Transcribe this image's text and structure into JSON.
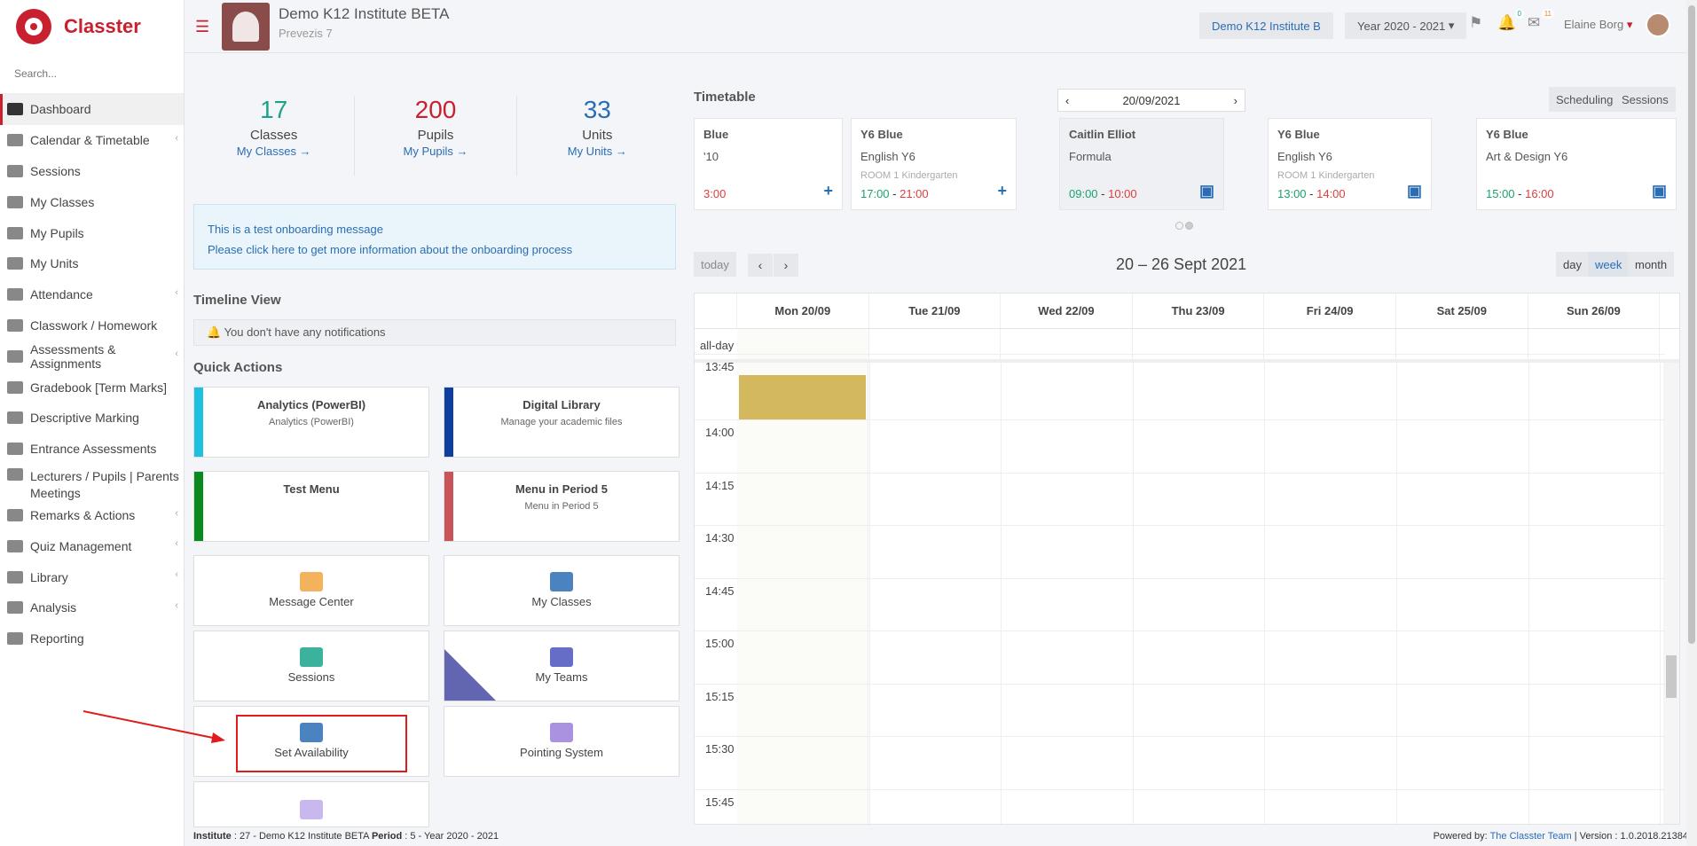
{
  "app": {
    "name": "Classter",
    "brand_color": "#c8202f"
  },
  "sidebar": {
    "search_placeholder": "Search...",
    "items": [
      {
        "label": "Dashboard",
        "icon": "laptop-icon"
      },
      {
        "label": "Calendar & Timetable",
        "icon": "calendar-icon"
      },
      {
        "label": "Sessions",
        "icon": "sessions-icon"
      },
      {
        "label": "My Classes",
        "icon": "classes-icon"
      },
      {
        "label": "My Pupils",
        "icon": "pupils-icon"
      },
      {
        "label": "My Units",
        "icon": "book-icon"
      },
      {
        "label": "Attendance",
        "icon": "attendance-icon"
      },
      {
        "label": "Classwork / Homework",
        "icon": "list-icon"
      },
      {
        "label": "Assessments & Assignments",
        "icon": "edit-icon"
      },
      {
        "label": "Gradebook [Term Marks]",
        "icon": "gradebook-icon"
      },
      {
        "label": "Descriptive Marking",
        "icon": "marking-icon"
      },
      {
        "label": "Entrance Assessments",
        "icon": "user-icon"
      },
      {
        "label": "Lecturers / Pupils | Parents Meetings",
        "icon": "meeting-icon"
      },
      {
        "label": "Remarks & Actions",
        "icon": "shuffle-icon"
      },
      {
        "label": "Quiz Management",
        "icon": "quiz-icon"
      },
      {
        "label": "Library",
        "icon": "library-icon"
      },
      {
        "label": "Analysis",
        "icon": "chart-icon"
      },
      {
        "label": "Reporting",
        "icon": "print-icon"
      }
    ]
  },
  "header": {
    "institute_name": "Demo K12 Institute BETA",
    "institute_sub": "Prevezis 7",
    "institute_button": "Demo K12 Institute B",
    "year_select": "Year 2020 - 2021",
    "notif_count": "0",
    "mail_count": "11",
    "user_name": "Elaine Borg"
  },
  "stats": [
    {
      "value": "17",
      "label": "Classes",
      "link": "My Classes  →",
      "color": "#1aa38a"
    },
    {
      "value": "200",
      "label": "Pupils",
      "link": "My Pupils  →",
      "color": "#c8202f"
    },
    {
      "value": "33",
      "label": "Units",
      "link": "My Units  →",
      "color": "#2a6db5"
    }
  ],
  "onboarding": {
    "line1": "This is a test onboarding message",
    "line2": "Please click here to get more information about the onboarding process"
  },
  "timeline": {
    "title": "Timeline View",
    "empty": "You don't have any notifications"
  },
  "quick_actions": {
    "title": "Quick Actions",
    "cards": [
      {
        "title": "Analytics (PowerBI)",
        "sub": "Analytics (PowerBI)",
        "color": "#1ec0e0"
      },
      {
        "title": "Digital Library",
        "sub": "Manage your academic files",
        "color": "#0e3fa0"
      },
      {
        "title": "Test Menu",
        "sub": "",
        "color": "#0a8a1e"
      },
      {
        "title": "Menu in Period 5",
        "sub": "Menu in Period 5",
        "color": "#c8545a"
      }
    ],
    "tiles": [
      {
        "label": "Message Center",
        "icon": "envelope-icon"
      },
      {
        "label": "My Classes",
        "icon": "classroom-icon"
      },
      {
        "label": "Sessions",
        "icon": "presentation-icon"
      },
      {
        "label": "My Teams",
        "icon": "teams-icon"
      },
      {
        "label": "Set Availability",
        "icon": "calendar-grid-icon"
      },
      {
        "label": "Pointing System",
        "icon": "badge-check-icon"
      }
    ]
  },
  "timetable": {
    "title": "Timetable",
    "date": "20/09/2021",
    "buttons": [
      "Scheduling",
      "Sessions"
    ],
    "slots": [
      {
        "class": "Blue",
        "subject": "'10",
        "room": "",
        "start": "",
        "end": "3:00"
      },
      {
        "class": "Y6 Blue",
        "subject": "English Y6",
        "room": "ROOM 1 Kindergarten",
        "start": "17:00",
        "end": "21:00"
      },
      {
        "class": "Caitlin Elliot",
        "subject": "Formula",
        "room": "",
        "start": "09:00",
        "end": "10:00"
      },
      {
        "class": "Y6 Blue",
        "subject": "English Y6",
        "room": "ROOM 1 Kindergarten",
        "start": "13:00",
        "end": "14:00"
      },
      {
        "class": "Y6 Blue",
        "subject": "Art & Design Y6",
        "room": "",
        "start": "15:00",
        "end": "16:00"
      }
    ]
  },
  "calendar": {
    "today": "today",
    "range": "20 – 26 Sept 2021",
    "views": [
      "day",
      "week",
      "month"
    ],
    "active_view": "week",
    "all_day": "all-day",
    "days": [
      "Mon 20/09",
      "Tue 21/09",
      "Wed 22/09",
      "Thu 23/09",
      "Fri 24/09",
      "Sat 25/09",
      "Sun 26/09"
    ],
    "times": [
      "13:45",
      "14:00",
      "14:15",
      "14:30",
      "14:45",
      "15:00",
      "15:15",
      "15:30",
      "15:45"
    ],
    "event_color": "#d3b85e"
  },
  "footer": {
    "institute_label": "Institute",
    "institute_value": ": 27 - Demo K12 Institute BETA",
    "period_label": "Period",
    "period_value": ": 5 - Year 2020 - 2021",
    "powered": "Powered by:",
    "team": "The Classter Team",
    "version": "| Version : 1.0.2018.21384"
  }
}
